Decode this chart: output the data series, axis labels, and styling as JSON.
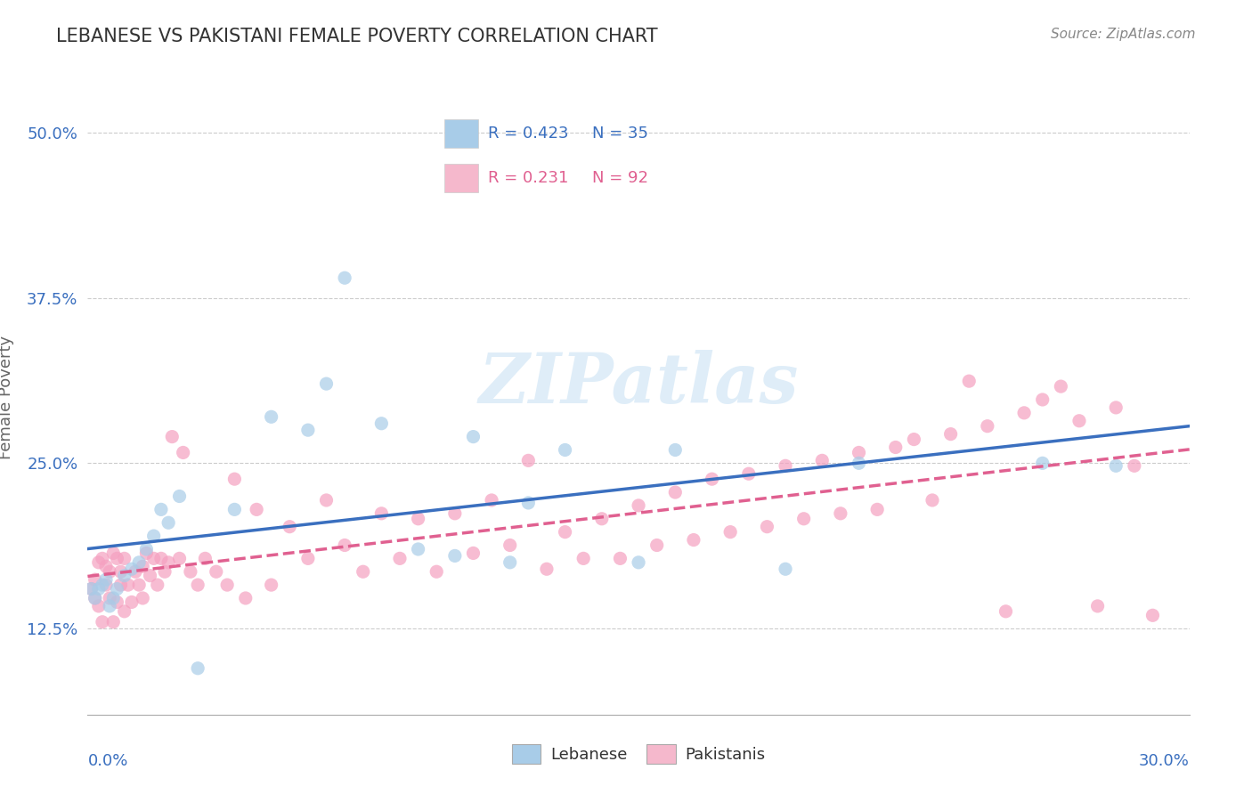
{
  "title": "LEBANESE VS PAKISTANI FEMALE POVERTY CORRELATION CHART",
  "source": "Source: ZipAtlas.com",
  "ylabel": "Female Poverty",
  "xlim": [
    0.0,
    0.3
  ],
  "ylim": [
    0.06,
    0.54
  ],
  "yticks": [
    0.125,
    0.25,
    0.375,
    0.5
  ],
  "ytick_labels": [
    "12.5%",
    "25.0%",
    "37.5%",
    "50.0%"
  ],
  "xtick_left": "0.0%",
  "xtick_right": "30.0%",
  "legend_r1": "R = 0.423",
  "legend_n1": "N = 35",
  "legend_r2": "R = 0.231",
  "legend_n2": "N = 92",
  "legend_label1": "Lebanese",
  "legend_label2": "Pakistanis",
  "blue_dot_color": "#a8cce8",
  "pink_dot_color": "#f5a0c0",
  "blue_line_color": "#3a6fbf",
  "pink_line_color": "#e06090",
  "blue_legend_color": "#a8cce8",
  "pink_legend_color": "#f5b8cc",
  "watermark": "ZIPatlas",
  "lebanese_x": [
    0.001,
    0.002,
    0.003,
    0.004,
    0.005,
    0.006,
    0.007,
    0.008,
    0.01,
    0.012,
    0.014,
    0.016,
    0.018,
    0.02,
    0.022,
    0.025,
    0.03,
    0.04,
    0.05,
    0.06,
    0.065,
    0.07,
    0.08,
    0.09,
    0.1,
    0.105,
    0.115,
    0.12,
    0.13,
    0.15,
    0.16,
    0.19,
    0.21,
    0.26,
    0.28
  ],
  "lebanese_y": [
    0.155,
    0.148,
    0.155,
    0.158,
    0.162,
    0.142,
    0.148,
    0.155,
    0.165,
    0.17,
    0.175,
    0.185,
    0.195,
    0.215,
    0.205,
    0.225,
    0.095,
    0.215,
    0.285,
    0.275,
    0.31,
    0.39,
    0.28,
    0.185,
    0.18,
    0.27,
    0.175,
    0.22,
    0.26,
    0.175,
    0.26,
    0.17,
    0.25,
    0.25,
    0.248
  ],
  "pakistani_x": [
    0.001,
    0.002,
    0.002,
    0.003,
    0.003,
    0.004,
    0.004,
    0.005,
    0.005,
    0.006,
    0.006,
    0.007,
    0.007,
    0.008,
    0.008,
    0.009,
    0.009,
    0.01,
    0.01,
    0.011,
    0.012,
    0.013,
    0.014,
    0.015,
    0.015,
    0.016,
    0.017,
    0.018,
    0.019,
    0.02,
    0.021,
    0.022,
    0.023,
    0.025,
    0.026,
    0.028,
    0.03,
    0.032,
    0.035,
    0.038,
    0.04,
    0.043,
    0.046,
    0.05,
    0.055,
    0.06,
    0.065,
    0.07,
    0.075,
    0.08,
    0.085,
    0.09,
    0.095,
    0.1,
    0.105,
    0.11,
    0.115,
    0.12,
    0.125,
    0.13,
    0.135,
    0.14,
    0.145,
    0.15,
    0.155,
    0.16,
    0.165,
    0.17,
    0.175,
    0.18,
    0.185,
    0.19,
    0.195,
    0.2,
    0.205,
    0.21,
    0.215,
    0.22,
    0.225,
    0.23,
    0.235,
    0.24,
    0.245,
    0.25,
    0.255,
    0.26,
    0.265,
    0.27,
    0.275,
    0.28,
    0.285,
    0.29
  ],
  "pakistani_y": [
    0.155,
    0.148,
    0.162,
    0.142,
    0.175,
    0.13,
    0.178,
    0.158,
    0.172,
    0.148,
    0.168,
    0.13,
    0.182,
    0.145,
    0.178,
    0.158,
    0.168,
    0.138,
    0.178,
    0.158,
    0.145,
    0.168,
    0.158,
    0.172,
    0.148,
    0.182,
    0.165,
    0.178,
    0.158,
    0.178,
    0.168,
    0.175,
    0.27,
    0.178,
    0.258,
    0.168,
    0.158,
    0.178,
    0.168,
    0.158,
    0.238,
    0.148,
    0.215,
    0.158,
    0.202,
    0.178,
    0.222,
    0.188,
    0.168,
    0.212,
    0.178,
    0.208,
    0.168,
    0.212,
    0.182,
    0.222,
    0.188,
    0.252,
    0.17,
    0.198,
    0.178,
    0.208,
    0.178,
    0.218,
    0.188,
    0.228,
    0.192,
    0.238,
    0.198,
    0.242,
    0.202,
    0.248,
    0.208,
    0.252,
    0.212,
    0.258,
    0.215,
    0.262,
    0.268,
    0.222,
    0.272,
    0.312,
    0.278,
    0.138,
    0.288,
    0.298,
    0.308,
    0.282,
    0.142,
    0.292,
    0.248,
    0.135
  ]
}
